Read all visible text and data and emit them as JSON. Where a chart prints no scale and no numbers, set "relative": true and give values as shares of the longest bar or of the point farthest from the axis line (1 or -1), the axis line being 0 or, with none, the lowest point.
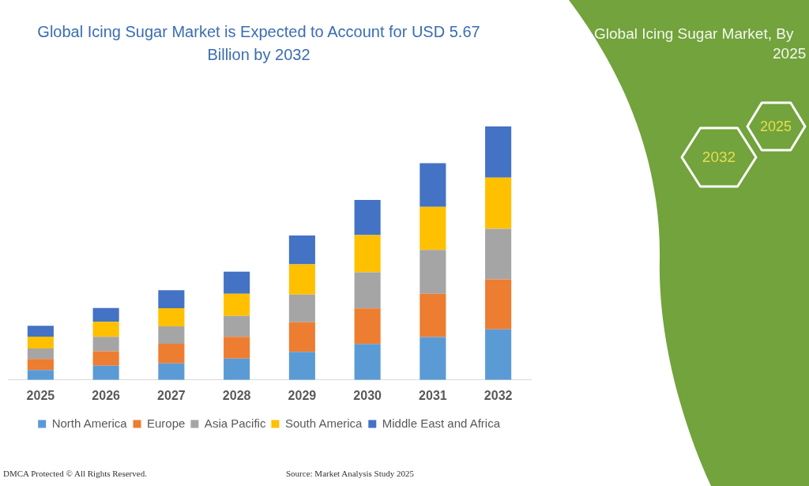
{
  "chart_data": {
    "type": "bar",
    "title": "Global Icing Sugar Market is Expected to Account for USD 5.67 Billion by 2032",
    "categories": [
      "2025",
      "2026",
      "2027",
      "2028",
      "2029",
      "2030",
      "2031",
      "2032"
    ],
    "stacked": true,
    "relative": true,
    "legend": "bottom",
    "series": [
      {
        "name": "North America",
        "color": "#5b9bd5",
        "values": [
          0.039,
          0.056,
          0.066,
          0.084,
          0.111,
          0.142,
          0.169,
          0.2
        ]
      },
      {
        "name": "Europe",
        "color": "#ed7d31",
        "values": [
          0.044,
          0.057,
          0.077,
          0.086,
          0.117,
          0.14,
          0.171,
          0.197
        ]
      },
      {
        "name": "Asia Pacific",
        "color": "#a5a5a5",
        "values": [
          0.041,
          0.057,
          0.068,
          0.083,
          0.109,
          0.143,
          0.173,
          0.199
        ]
      },
      {
        "name": "South America",
        "color": "#ffc000",
        "values": [
          0.047,
          0.059,
          0.072,
          0.087,
          0.119,
          0.146,
          0.17,
          0.202
        ]
      },
      {
        "name": "Middle East and Africa",
        "color": "#4472c4",
        "values": [
          0.043,
          0.055,
          0.071,
          0.087,
          0.114,
          0.139,
          0.172,
          0.202
        ]
      }
    ],
    "annotations": [
      "Global Icing Sugar Market, By",
      "2025",
      "2032",
      "2025",
      "DMCA Protected © All Rights Reserved.",
      "Source: Market Analysis Study 2025"
    ]
  }
}
